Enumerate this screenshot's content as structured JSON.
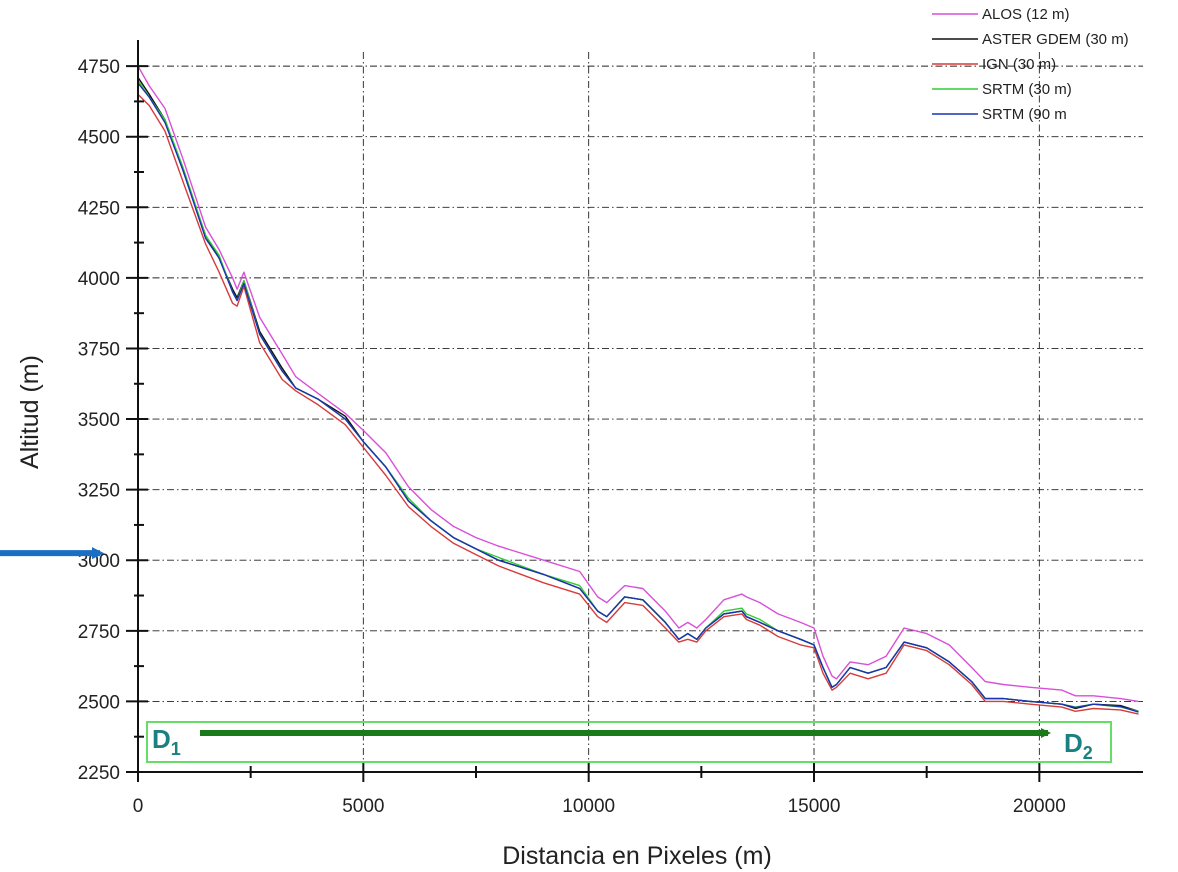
{
  "chart_data": {
    "type": "line",
    "title": "",
    "xlabel": "Distancia en Pixeles (m)",
    "ylabel": "Altitud (m)",
    "xlim": [
      0,
      22300
    ],
    "ylim": [
      2250,
      4800
    ],
    "x_ticks": [
      0,
      5000,
      10000,
      15000,
      20000
    ],
    "y_ticks": [
      2250,
      2500,
      2750,
      3000,
      3250,
      3500,
      3750,
      4000,
      4250,
      4500,
      4750
    ],
    "grid": true,
    "legend_position": "top-right",
    "x": [
      0,
      250,
      600,
      1000,
      1500,
      1800,
      2100,
      2200,
      2350,
      2700,
      3200,
      3500,
      4000,
      4600,
      5000,
      5500,
      6000,
      6500,
      7000,
      7500,
      8000,
      9000,
      9800,
      10200,
      10400,
      10800,
      11200,
      11700,
      12000,
      12200,
      12400,
      12600,
      13000,
      13400,
      13500,
      13800,
      14200,
      14700,
      15000,
      15200,
      15400,
      15500,
      15800,
      16200,
      16600,
      17000,
      17500,
      18000,
      18500,
      18800,
      19200,
      19800,
      20500,
      20800,
      21200,
      21800,
      22200
    ],
    "series": [
      {
        "name": "ALOS (12 m)",
        "color": "#d94fd9",
        "values": [
          4750,
          4680,
          4600,
          4420,
          4180,
          4100,
          4000,
          3960,
          4020,
          3860,
          3730,
          3650,
          3590,
          3520,
          3460,
          3380,
          3260,
          3180,
          3120,
          3080,
          3050,
          3000,
          2960,
          2870,
          2850,
          2910,
          2900,
          2820,
          2760,
          2780,
          2760,
          2790,
          2860,
          2880,
          2870,
          2850,
          2810,
          2780,
          2760,
          2660,
          2590,
          2580,
          2640,
          2630,
          2660,
          2760,
          2740,
          2700,
          2620,
          2570,
          2560,
          2550,
          2540,
          2520,
          2520,
          2510,
          2500
        ]
      },
      {
        "name": "ASTER GDEM (30 m)",
        "color": "#111111",
        "values": [
          4710,
          4650,
          4560,
          4380,
          4150,
          4070,
          3960,
          3930,
          3990,
          3810,
          3680,
          3610,
          3570,
          3510,
          3420,
          3330,
          3210,
          3140,
          3080,
          3040,
          3000,
          2950,
          2900,
          2820,
          2800,
          2870,
          2860,
          2780,
          2720,
          2740,
          2720,
          2760,
          2810,
          2820,
          2800,
          2780,
          2750,
          2720,
          2700,
          2620,
          2550,
          2560,
          2620,
          2600,
          2620,
          2710,
          2690,
          2640,
          2570,
          2510,
          2510,
          2500,
          2490,
          2475,
          2490,
          2485,
          2465
        ]
      },
      {
        "name": "IGN (30 m)",
        "color": "#d73b3b",
        "values": [
          4650,
          4610,
          4520,
          4340,
          4120,
          4020,
          3910,
          3900,
          3970,
          3770,
          3640,
          3600,
          3550,
          3480,
          3400,
          3300,
          3190,
          3120,
          3060,
          3020,
          2980,
          2920,
          2880,
          2800,
          2780,
          2850,
          2840,
          2760,
          2710,
          2720,
          2710,
          2750,
          2800,
          2810,
          2790,
          2770,
          2730,
          2700,
          2690,
          2600,
          2540,
          2550,
          2600,
          2580,
          2600,
          2700,
          2680,
          2630,
          2560,
          2500,
          2500,
          2490,
          2480,
          2465,
          2475,
          2470,
          2455
        ]
      },
      {
        "name": "SRTM (30 m)",
        "color": "#33cc33",
        "values": [
          4700,
          4640,
          4560,
          4390,
          4150,
          4080,
          3950,
          3920,
          3990,
          3800,
          3670,
          3610,
          3570,
          3500,
          3420,
          3330,
          3220,
          3140,
          3080,
          3040,
          3010,
          2950,
          2910,
          2820,
          2800,
          2870,
          2860,
          2780,
          2720,
          2740,
          2720,
          2760,
          2820,
          2830,
          2810,
          2790,
          2750,
          2720,
          2700,
          2620,
          2550,
          2560,
          2620,
          2600,
          2620,
          2710,
          2690,
          2640,
          2570,
          2510,
          2510,
          2500,
          2490,
          2480,
          2490,
          2480,
          2465
        ]
      },
      {
        "name": "SRTM (90 m",
        "color": "#1a33b3",
        "values": [
          4690,
          4640,
          4550,
          4380,
          4140,
          4070,
          3950,
          3920,
          3980,
          3800,
          3670,
          3610,
          3570,
          3500,
          3420,
          3330,
          3210,
          3140,
          3080,
          3040,
          3000,
          2950,
          2900,
          2820,
          2800,
          2870,
          2860,
          2780,
          2720,
          2740,
          2720,
          2760,
          2810,
          2820,
          2800,
          2780,
          2750,
          2720,
          2700,
          2620,
          2550,
          2560,
          2620,
          2600,
          2620,
          2710,
          2690,
          2640,
          2570,
          2510,
          2510,
          2500,
          2490,
          2478,
          2490,
          2482,
          2462
        ]
      }
    ],
    "annotations": {
      "start_label": "D",
      "start_sub": "1",
      "end_label": "D",
      "end_sub": "2",
      "arrow_color": "#1a7a1a",
      "box_color": "#66dd66",
      "label_color": "#1a8080",
      "marker_arrow_color": "#1a6fc4",
      "marker_arrow_y": 3025
    }
  }
}
